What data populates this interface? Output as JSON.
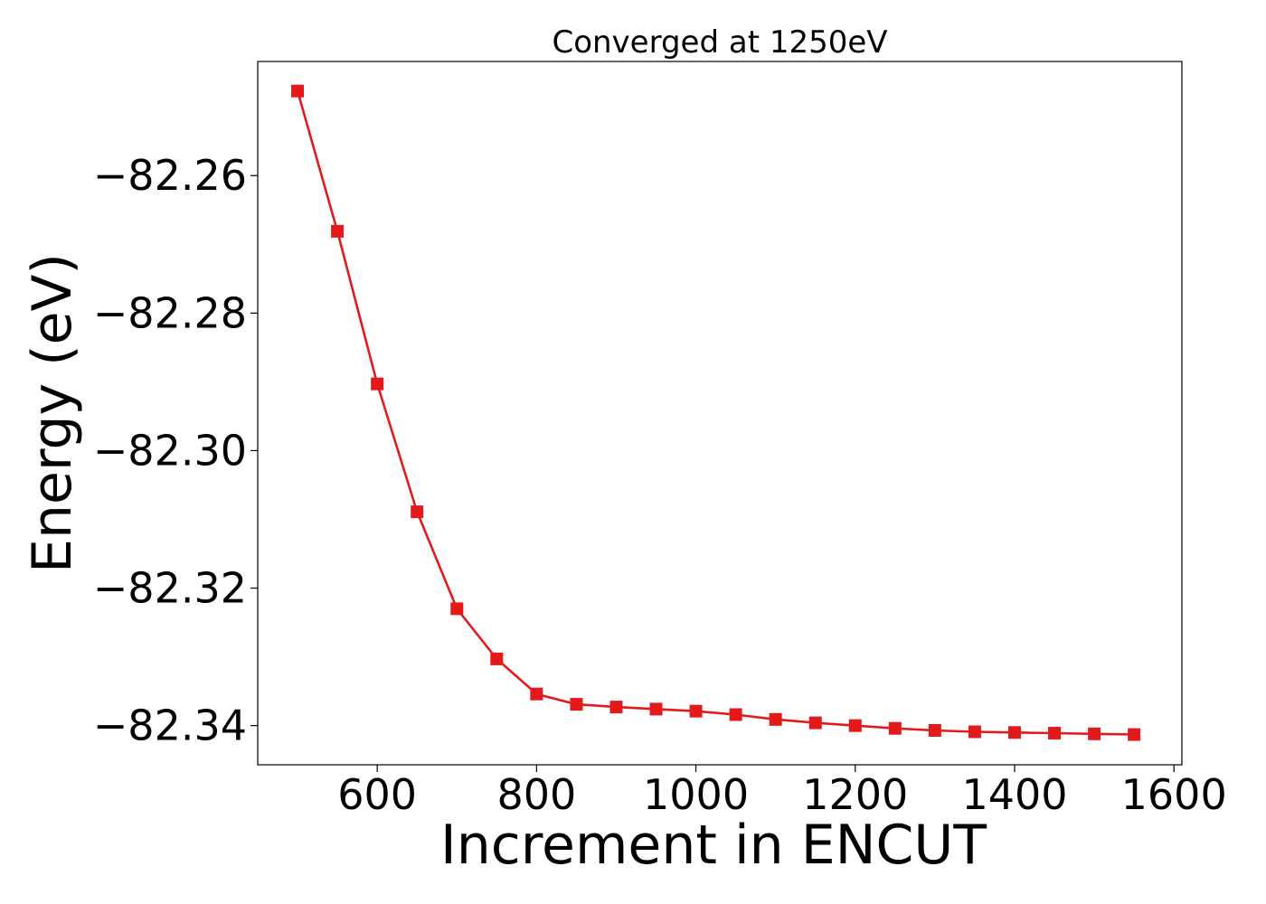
{
  "chart_data": {
    "type": "line",
    "title": "Converged at 1250eV",
    "xlabel": "Increment in ENCUT",
    "ylabel": "Energy (eV)",
    "xlim": [
      450,
      1610
    ],
    "ylim": [
      -82.3457,
      -82.2434
    ],
    "x_ticks": [
      600,
      800,
      1000,
      1200,
      1400,
      1600
    ],
    "y_ticks": [
      -82.26,
      -82.28,
      -82.3,
      -82.32,
      -82.34
    ],
    "y_tick_labels": [
      "−82.26",
      "−82.28",
      "−82.30",
      "−82.32",
      "−82.34"
    ],
    "grid": false,
    "marker": "square",
    "color": "#e31a1c",
    "series": [
      {
        "x": [
          500,
          550,
          600,
          650,
          700,
          750,
          800,
          850,
          900,
          950,
          1000,
          1050,
          1100,
          1150,
          1200,
          1250,
          1300,
          1350,
          1400,
          1450,
          1500,
          1550
        ],
        "values": [
          -82.2477,
          -82.2681,
          -82.2903,
          -82.3089,
          -82.323,
          -82.3303,
          -82.3354,
          -82.3369,
          -82.3373,
          -82.3376,
          -82.3379,
          -82.3384,
          -82.3391,
          -82.3396,
          -82.34,
          -82.3404,
          -82.3407,
          -82.3409,
          -82.341,
          -82.3411,
          -82.3412,
          -82.3413
        ]
      }
    ]
  }
}
